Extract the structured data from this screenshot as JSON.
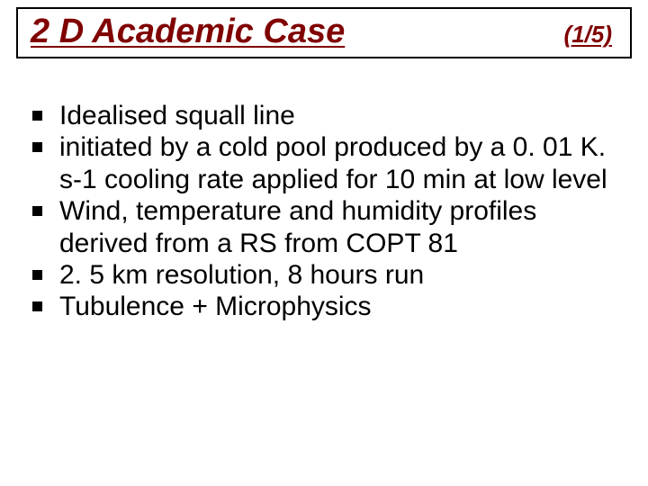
{
  "slide": {
    "title": "2 D Academic Case",
    "page_counter": "(1/5)",
    "bullets": [
      "Idealised squall line",
      "initiated by a cold pool produced by a 0. 01 K. s-1 cooling rate applied for 10 min at low level",
      "Wind, temperature and humidity profiles derived from a RS from COPT 81",
      "2. 5 km resolution, 8 hours run",
      "Tubulence + Microphysics"
    ]
  },
  "style": {
    "background_color": "#ffffff",
    "text_color": "#000000",
    "accent_color": "#800000",
    "title_fontsize": 38,
    "counter_fontsize": 26,
    "body_fontsize": 30,
    "font_family": "Comic Sans MS",
    "title_border_color": "#000000",
    "title_border_width": 2,
    "bullet_marker": "square",
    "bullet_color": "#000000"
  }
}
